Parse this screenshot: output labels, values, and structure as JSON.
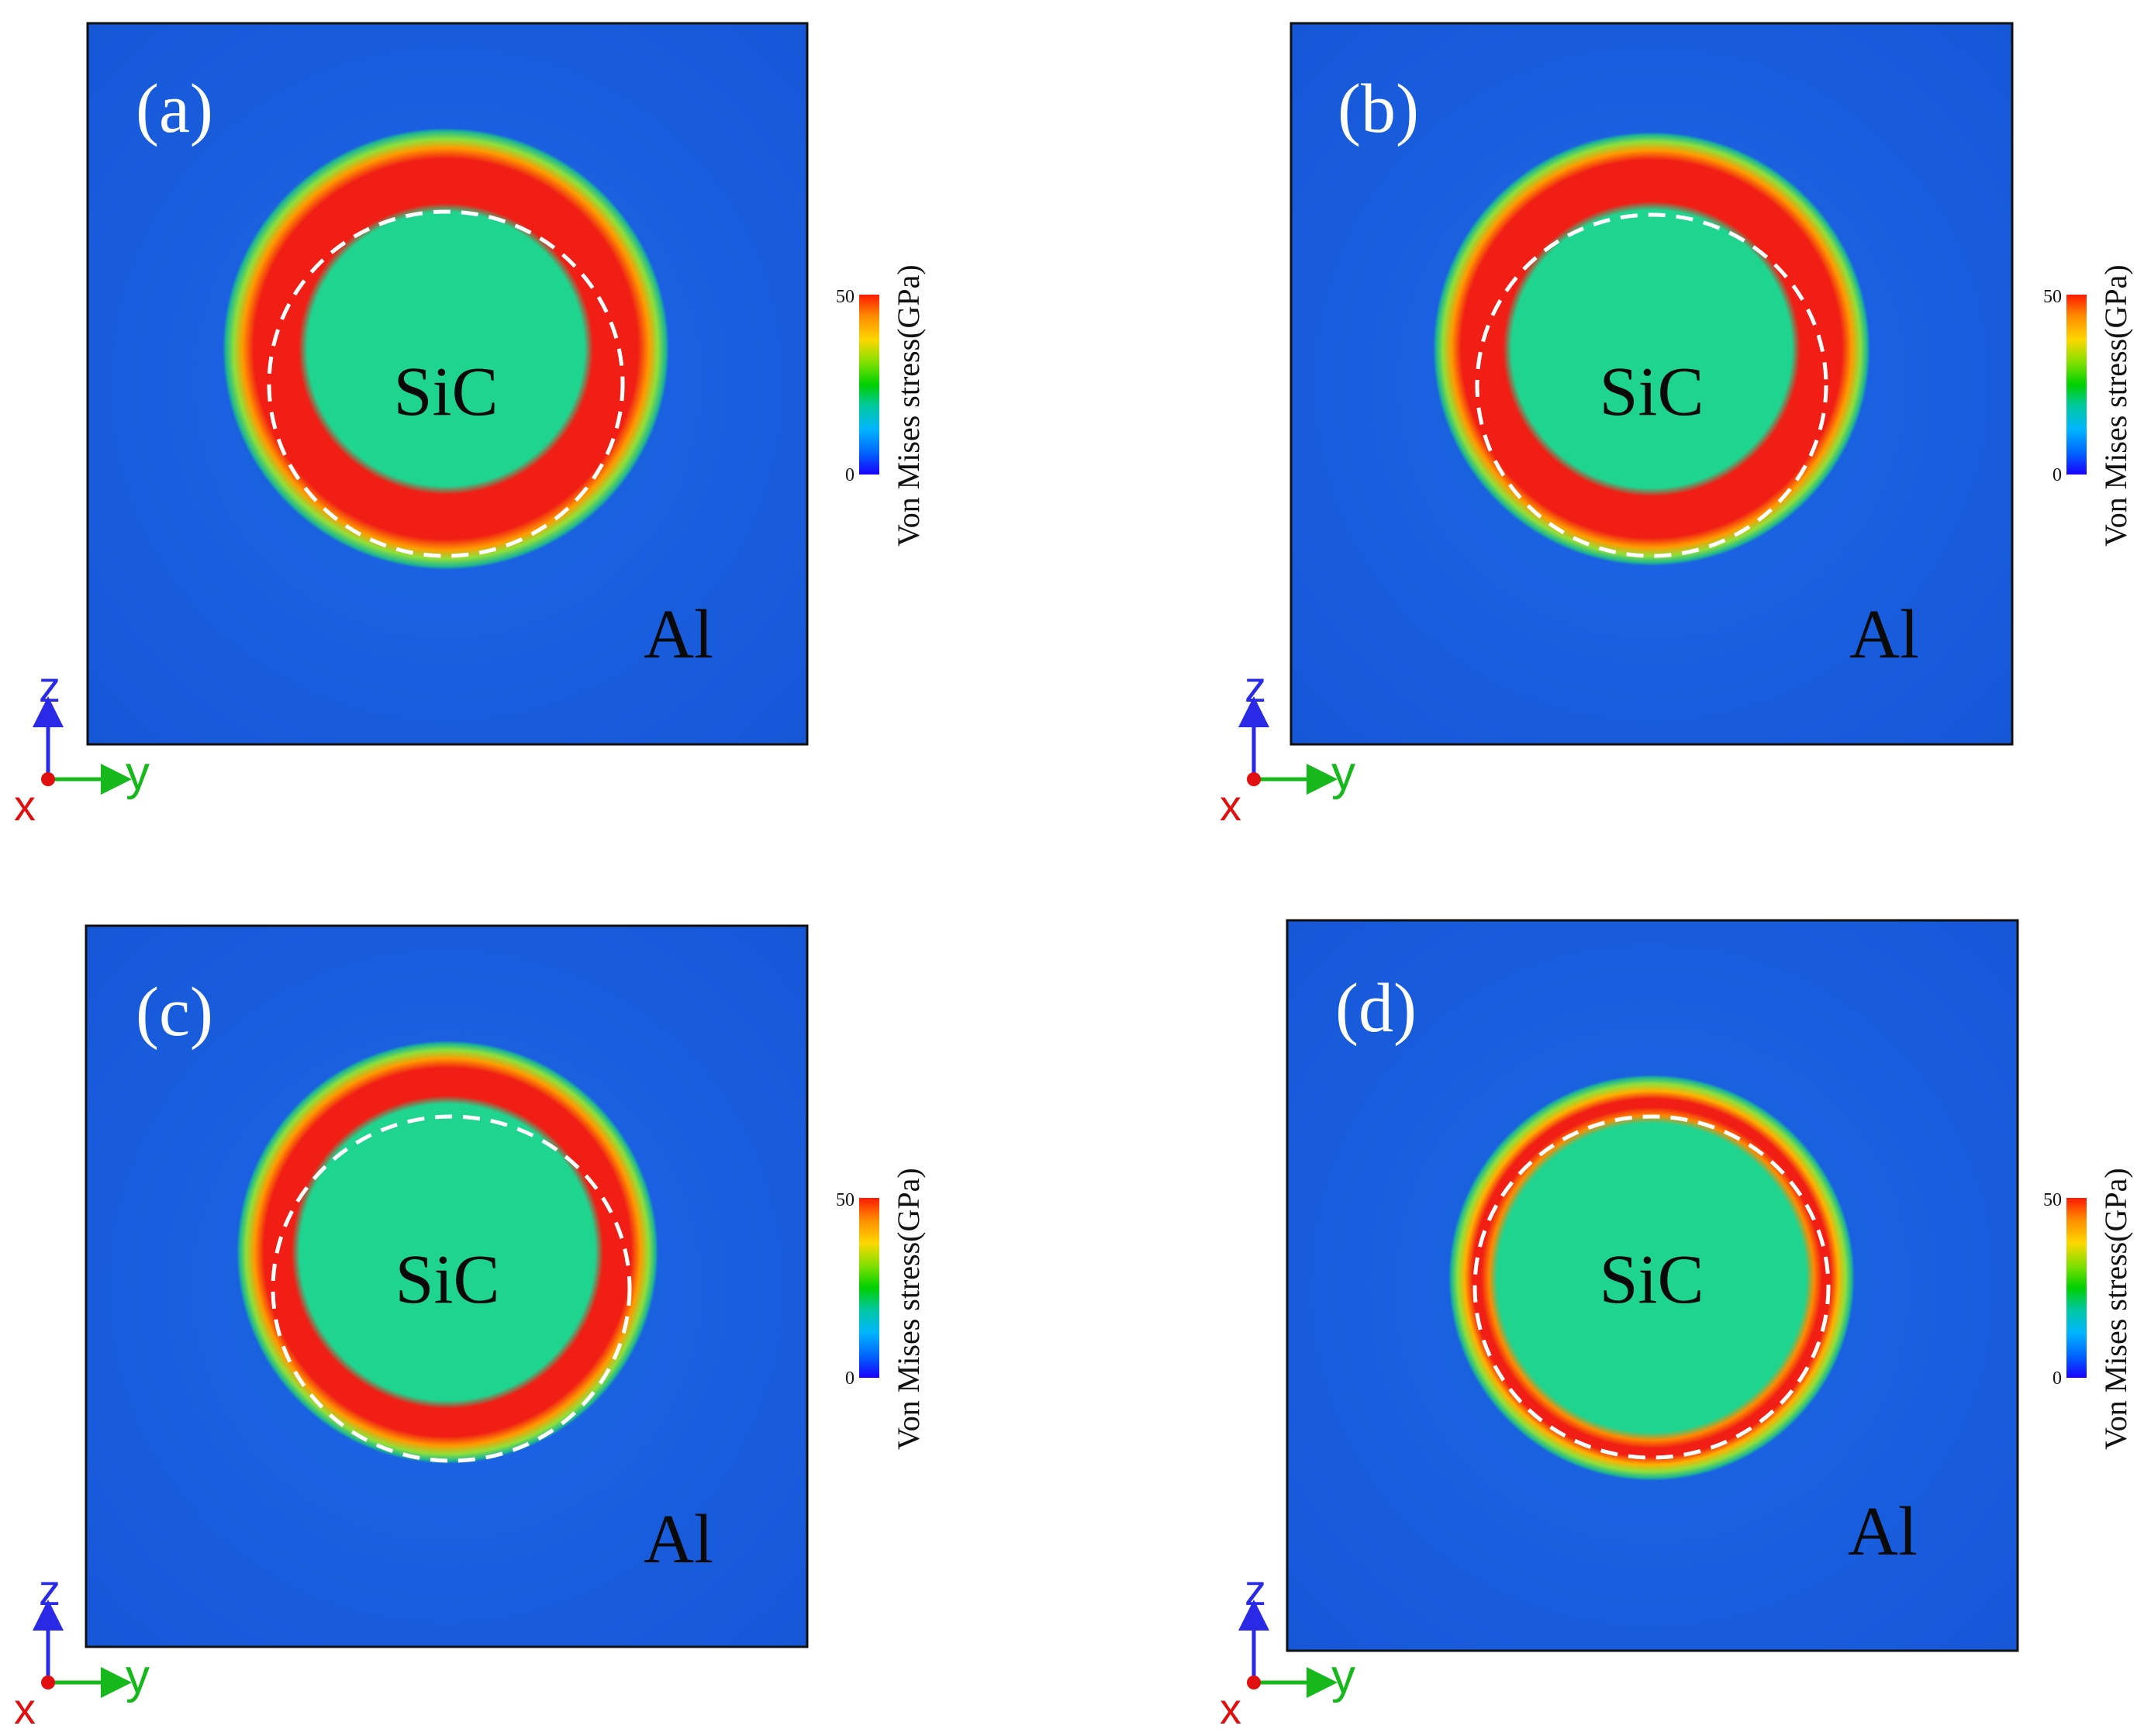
{
  "colors": {
    "background_blue": "#1a5fe0",
    "ring_red": "#f01e14",
    "core_green": "#1fd48f",
    "axis_z": "#2a2ae6",
    "axis_y": "#16b81c",
    "axis_x": "#e01010",
    "dash": "#ffffff"
  },
  "colorbar": {
    "title": "Von Mises stress(GPa)",
    "max_label": "50",
    "min_label": "0",
    "max_value": 50,
    "min_value": 0,
    "stops": [
      "#ff1a00",
      "#ff8c00",
      "#ffd700",
      "#7fe000",
      "#00d000",
      "#00c8a0",
      "#00b4ff",
      "#0064ff",
      "#1a00ff"
    ]
  },
  "axes_triad": {
    "z": "z",
    "y": "y",
    "x": "x"
  },
  "panels": [
    {
      "id": "a",
      "label": "(a)",
      "core_text": "SiC",
      "matrix_text": "Al"
    },
    {
      "id": "b",
      "label": "(b)",
      "core_text": "SiC",
      "matrix_text": "Al"
    },
    {
      "id": "c",
      "label": "(c)",
      "core_text": "SiC",
      "matrix_text": "Al"
    },
    {
      "id": "d",
      "label": "(d)",
      "core_text": "SiC",
      "matrix_text": "Al"
    }
  ]
}
